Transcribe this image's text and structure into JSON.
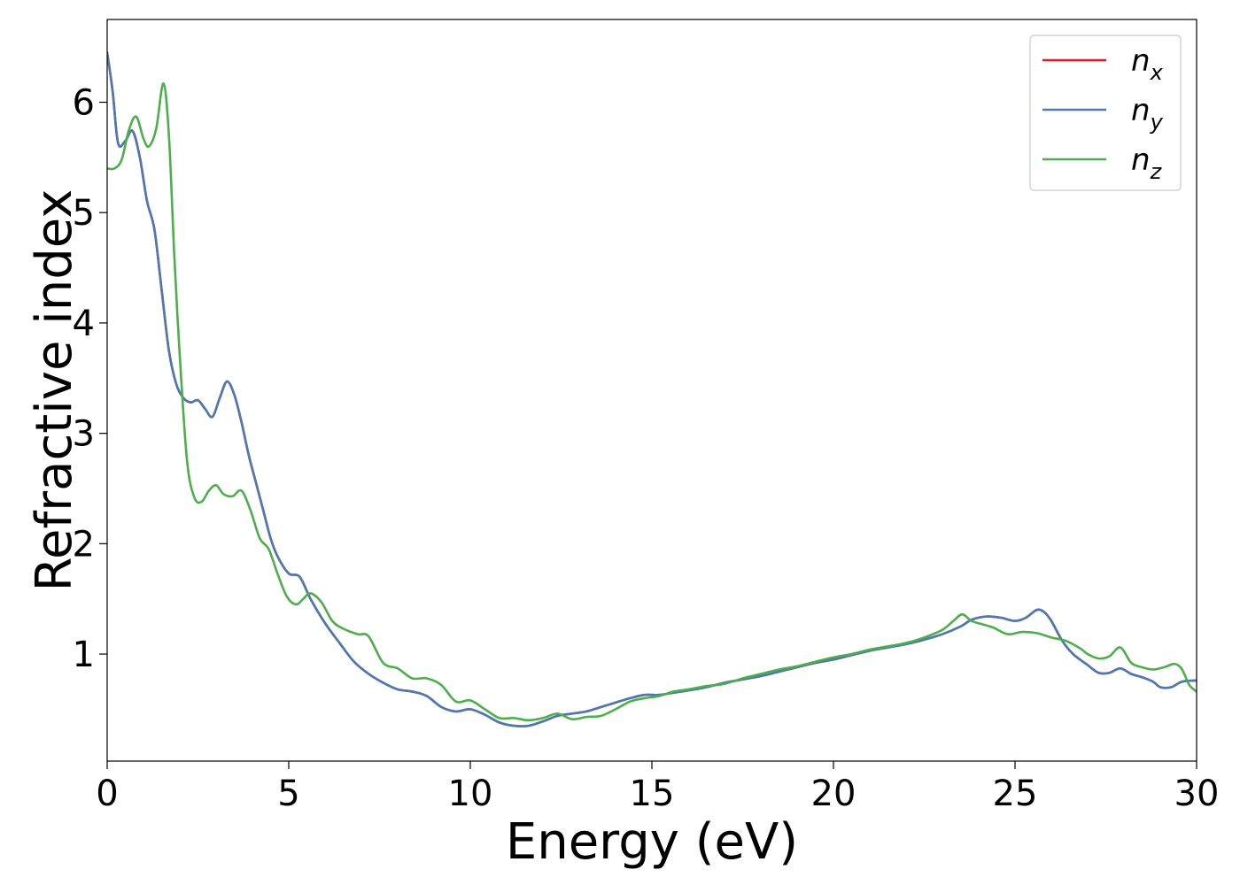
{
  "chart_data": {
    "type": "line",
    "xlabel": "Energy (eV)",
    "ylabel": "Refractive index",
    "xlim": [
      0,
      30
    ],
    "ylim": [
      0.03,
      6.75
    ],
    "xticks": [
      0,
      5,
      10,
      15,
      20,
      25,
      30
    ],
    "yticks": [
      1,
      2,
      3,
      4,
      5,
      6
    ],
    "grid": false,
    "legend_position": "top-right",
    "series": [
      {
        "name": "n_x",
        "legend_main": "n",
        "legend_sub": "x",
        "color": "#e41a1c",
        "x": [
          0,
          0.15,
          0.3,
          0.5,
          0.7,
          0.9,
          1.1,
          1.3,
          1.5,
          1.7,
          1.9,
          2.1,
          2.3,
          2.5,
          2.7,
          2.9,
          3.1,
          3.3,
          3.5,
          3.7,
          3.9,
          4.1,
          4.3,
          4.5,
          4.7,
          5.0,
          5.3,
          5.6,
          6.0,
          6.4,
          6.8,
          7.2,
          7.6,
          8.0,
          8.4,
          8.8,
          9.2,
          9.6,
          10.0,
          10.4,
          10.8,
          11.2,
          11.6,
          12.0,
          12.4,
          12.8,
          13.2,
          13.6,
          14.0,
          14.4,
          14.8,
          15.2,
          15.6,
          16.0,
          16.5,
          17.0,
          17.5,
          18.0,
          18.5,
          19.0,
          19.5,
          20.0,
          20.5,
          21.0,
          21.5,
          22.0,
          22.5,
          23.0,
          23.5,
          23.8,
          24.2,
          24.6,
          25.0,
          25.3,
          25.6,
          25.8,
          26.0,
          26.3,
          26.6,
          27.0,
          27.3,
          27.6,
          27.9,
          28.2,
          28.5,
          28.8,
          29.0,
          29.3,
          29.6,
          30.0
        ],
        "y": [
          6.45,
          6.1,
          5.63,
          5.65,
          5.74,
          5.5,
          5.1,
          4.85,
          4.3,
          3.75,
          3.45,
          3.32,
          3.28,
          3.3,
          3.22,
          3.15,
          3.32,
          3.47,
          3.35,
          3.1,
          2.8,
          2.55,
          2.3,
          2.05,
          1.88,
          1.73,
          1.7,
          1.5,
          1.28,
          1.1,
          0.93,
          0.82,
          0.74,
          0.68,
          0.66,
          0.62,
          0.52,
          0.48,
          0.5,
          0.45,
          0.38,
          0.35,
          0.35,
          0.39,
          0.44,
          0.46,
          0.48,
          0.52,
          0.56,
          0.6,
          0.63,
          0.63,
          0.65,
          0.67,
          0.7,
          0.74,
          0.77,
          0.8,
          0.84,
          0.88,
          0.92,
          0.95,
          0.99,
          1.03,
          1.06,
          1.09,
          1.13,
          1.18,
          1.25,
          1.31,
          1.34,
          1.33,
          1.3,
          1.33,
          1.4,
          1.38,
          1.3,
          1.12,
          1.0,
          0.9,
          0.83,
          0.83,
          0.87,
          0.82,
          0.79,
          0.75,
          0.7,
          0.7,
          0.75,
          0.76
        ]
      },
      {
        "name": "n_y",
        "legend_main": "n",
        "legend_sub": "y",
        "color": "#4a7ab4",
        "x": [
          0,
          0.15,
          0.3,
          0.5,
          0.7,
          0.9,
          1.1,
          1.3,
          1.5,
          1.7,
          1.9,
          2.1,
          2.3,
          2.5,
          2.7,
          2.9,
          3.1,
          3.3,
          3.5,
          3.7,
          3.9,
          4.1,
          4.3,
          4.5,
          4.7,
          5.0,
          5.3,
          5.6,
          6.0,
          6.4,
          6.8,
          7.2,
          7.6,
          8.0,
          8.4,
          8.8,
          9.2,
          9.6,
          10.0,
          10.4,
          10.8,
          11.2,
          11.6,
          12.0,
          12.4,
          12.8,
          13.2,
          13.6,
          14.0,
          14.4,
          14.8,
          15.2,
          15.6,
          16.0,
          16.5,
          17.0,
          17.5,
          18.0,
          18.5,
          19.0,
          19.5,
          20.0,
          20.5,
          21.0,
          21.5,
          22.0,
          22.5,
          23.0,
          23.5,
          23.8,
          24.2,
          24.6,
          25.0,
          25.3,
          25.6,
          25.8,
          26.0,
          26.3,
          26.6,
          27.0,
          27.3,
          27.6,
          27.9,
          28.2,
          28.5,
          28.8,
          29.0,
          29.3,
          29.6,
          30.0
        ],
        "y": [
          6.45,
          6.1,
          5.63,
          5.65,
          5.74,
          5.5,
          5.1,
          4.85,
          4.3,
          3.75,
          3.45,
          3.32,
          3.28,
          3.3,
          3.22,
          3.15,
          3.32,
          3.47,
          3.35,
          3.1,
          2.8,
          2.55,
          2.3,
          2.05,
          1.88,
          1.73,
          1.7,
          1.5,
          1.28,
          1.1,
          0.93,
          0.82,
          0.74,
          0.68,
          0.66,
          0.62,
          0.52,
          0.48,
          0.5,
          0.45,
          0.38,
          0.35,
          0.35,
          0.39,
          0.44,
          0.46,
          0.48,
          0.52,
          0.56,
          0.6,
          0.63,
          0.63,
          0.65,
          0.67,
          0.7,
          0.74,
          0.77,
          0.8,
          0.84,
          0.88,
          0.92,
          0.95,
          0.99,
          1.03,
          1.06,
          1.09,
          1.13,
          1.18,
          1.25,
          1.31,
          1.34,
          1.33,
          1.3,
          1.33,
          1.4,
          1.38,
          1.3,
          1.12,
          1.0,
          0.9,
          0.83,
          0.83,
          0.87,
          0.82,
          0.79,
          0.75,
          0.7,
          0.7,
          0.75,
          0.76
        ]
      },
      {
        "name": "n_z",
        "legend_main": "n",
        "legend_sub": "z",
        "color": "#4daf4a",
        "x": [
          0,
          0.2,
          0.4,
          0.6,
          0.8,
          1.0,
          1.15,
          1.35,
          1.55,
          1.7,
          1.85,
          2.0,
          2.2,
          2.4,
          2.6,
          2.8,
          3.0,
          3.2,
          3.45,
          3.7,
          3.95,
          4.2,
          4.45,
          4.7,
          4.95,
          5.2,
          5.4,
          5.6,
          5.9,
          6.2,
          6.5,
          6.9,
          7.2,
          7.6,
          8.0,
          8.4,
          8.8,
          9.2,
          9.6,
          10.0,
          10.4,
          10.8,
          11.2,
          11.6,
          12.0,
          12.4,
          12.8,
          13.2,
          13.6,
          14.0,
          14.4,
          14.8,
          15.2,
          15.6,
          16.0,
          16.5,
          17.0,
          17.5,
          18.0,
          18.5,
          19.0,
          19.5,
          20.0,
          20.5,
          21.0,
          21.5,
          22.0,
          22.5,
          23.0,
          23.3,
          23.55,
          23.8,
          24.1,
          24.4,
          24.8,
          25.2,
          25.6,
          26.0,
          26.4,
          26.8,
          27.0,
          27.3,
          27.6,
          27.9,
          28.2,
          28.5,
          28.8,
          29.1,
          29.4,
          29.6,
          29.8,
          30.0
        ],
        "y": [
          5.4,
          5.4,
          5.48,
          5.75,
          5.87,
          5.67,
          5.6,
          5.76,
          6.17,
          5.7,
          4.6,
          3.7,
          2.75,
          2.42,
          2.38,
          2.48,
          2.53,
          2.45,
          2.43,
          2.48,
          2.3,
          2.05,
          1.95,
          1.72,
          1.52,
          1.45,
          1.5,
          1.55,
          1.47,
          1.3,
          1.23,
          1.18,
          1.16,
          0.92,
          0.87,
          0.78,
          0.78,
          0.72,
          0.57,
          0.58,
          0.5,
          0.42,
          0.42,
          0.4,
          0.42,
          0.46,
          0.41,
          0.43,
          0.44,
          0.5,
          0.57,
          0.6,
          0.62,
          0.66,
          0.68,
          0.71,
          0.73,
          0.78,
          0.82,
          0.86,
          0.89,
          0.93,
          0.97,
          1.0,
          1.04,
          1.07,
          1.1,
          1.15,
          1.22,
          1.3,
          1.36,
          1.3,
          1.27,
          1.24,
          1.18,
          1.2,
          1.19,
          1.15,
          1.12,
          1.05,
          1.0,
          0.96,
          0.98,
          1.06,
          0.92,
          0.88,
          0.86,
          0.88,
          0.91,
          0.86,
          0.72,
          0.66
        ]
      }
    ]
  }
}
